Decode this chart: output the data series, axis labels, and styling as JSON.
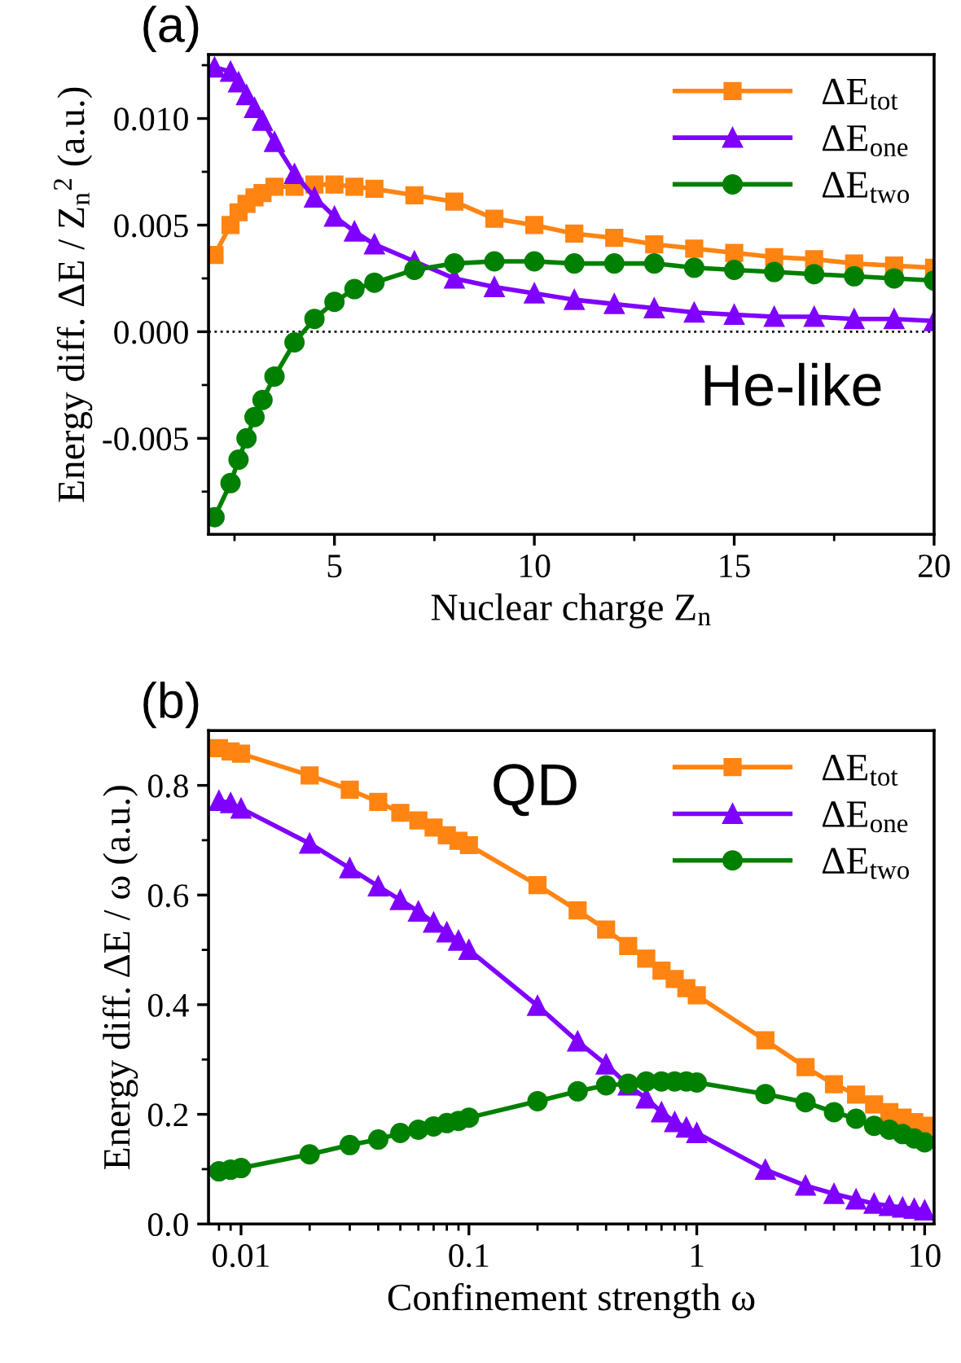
{
  "chart_data": [
    {
      "type": "line",
      "title": "(a)",
      "xlabel": "Nuclear charge Z$_{n}$",
      "ylabel": "Energy diff. ΔE / Z$_{n}$$^{2}$ (a.u.)",
      "x": [
        2,
        2.4,
        2.6,
        2.8,
        3,
        3.2,
        3.5,
        4,
        4.5,
        5,
        5.5,
        6,
        7,
        8,
        9,
        10,
        11,
        12,
        13,
        14,
        15,
        16,
        17,
        18,
        19,
        20
      ],
      "series": [
        {
          "name": "ΔE$_{tot}$",
          "color": "#ff8412",
          "marker": "square",
          "values": [
            0.0036,
            0.005,
            0.0056,
            0.006,
            0.0063,
            0.0065,
            0.0068,
            0.0068,
            0.0069,
            0.0069,
            0.0068,
            0.0067,
            0.0064,
            0.0061,
            0.0053,
            0.005,
            0.0046,
            0.0044,
            0.0041,
            0.0039,
            0.0037,
            0.0035,
            0.0034,
            0.0032,
            0.0031,
            0.003
          ]
        },
        {
          "name": "ΔE$_{one}$",
          "color": "#8000ff",
          "marker": "triangle",
          "values": [
            0.0124,
            0.0122,
            0.0117,
            0.0111,
            0.0105,
            0.0099,
            0.0089,
            0.0074,
            0.0063,
            0.0054,
            0.0047,
            0.0041,
            0.0033,
            0.0025,
            0.0021,
            0.0018,
            0.0015,
            0.0013,
            0.0011,
            0.0009,
            0.0008,
            0.0007,
            0.0007,
            0.0006,
            0.0006,
            0.0005
          ]
        },
        {
          "name": "ΔE$_{two}$",
          "color": "#008000",
          "marker": "circle",
          "values": [
            -0.0087,
            -0.0071,
            -0.006,
            -0.005,
            -0.004,
            -0.0032,
            -0.0021,
            -0.0005,
            0.0006,
            0.0014,
            0.002,
            0.0023,
            0.0029,
            0.0032,
            0.0033,
            0.0033,
            0.0032,
            0.0032,
            0.0032,
            0.003,
            0.0029,
            0.0028,
            0.0027,
            0.0026,
            0.0025,
            0.0024
          ]
        }
      ],
      "xlim": [
        1.85,
        20
      ],
      "ylim": [
        -0.0095,
        0.013
      ],
      "xticks": [
        {
          "value": 2.5,
          "label": null
        },
        5,
        {
          "value": 7.5,
          "label": null
        },
        10,
        {
          "value": 12.5,
          "label": null
        },
        15,
        {
          "value": 17.5,
          "label": null
        },
        20
      ],
      "yticks": [
        {
          "value": -0.0075,
          "label": null
        },
        {
          "value": -0.005,
          "label": "-0.005"
        },
        {
          "value": -0.0025,
          "label": null
        },
        {
          "value": 0,
          "label": "0.000"
        },
        {
          "value": 0.0025,
          "label": null
        },
        {
          "value": 0.005,
          "label": "0.005"
        },
        {
          "value": 0.0075,
          "label": null
        },
        {
          "value": 0.01,
          "label": "0.010"
        },
        {
          "value": 0.0125,
          "label": null
        }
      ],
      "ref_lines": [
        {
          "axis": "y",
          "value": 0,
          "color": "#000000",
          "line_style": "dotted"
        }
      ],
      "annotations": [
        "He-like"
      ],
      "legend": "top right",
      "line_style": "solid"
    },
    {
      "type": "line",
      "title": "(b)",
      "xlabel": "Confinement strength ω",
      "ylabel": "Energy diff. ΔE / ω (a.u.)",
      "log": "x",
      "x": [
        0.008,
        0.009,
        0.01,
        0.02,
        0.03,
        0.04,
        0.05,
        0.06,
        0.07,
        0.08,
        0.09,
        0.1,
        0.2,
        0.3,
        0.4,
        0.5,
        0.6,
        0.7,
        0.8,
        0.9,
        1,
        2,
        3,
        4,
        5,
        6,
        7,
        8,
        9,
        10
      ],
      "series": [
        {
          "name": "ΔE$_{tot}$",
          "color": "#ff8412",
          "marker": "square",
          "values": [
            0.868,
            0.862,
            0.858,
            0.818,
            0.792,
            0.77,
            0.75,
            0.736,
            0.723,
            0.709,
            0.699,
            0.691,
            0.618,
            0.572,
            0.537,
            0.507,
            0.484,
            0.462,
            0.447,
            0.43,
            0.417,
            0.335,
            0.286,
            0.255,
            0.236,
            0.218,
            0.204,
            0.194,
            0.186,
            0.179
          ]
        },
        {
          "name": "ΔE$_{one}$",
          "color": "#8000ff",
          "marker": "triangle",
          "values": [
            0.772,
            0.768,
            0.758,
            0.694,
            0.649,
            0.616,
            0.591,
            0.57,
            0.55,
            0.532,
            0.517,
            0.5,
            0.398,
            0.333,
            0.291,
            0.253,
            0.229,
            0.204,
            0.186,
            0.176,
            0.166,
            0.099,
            0.07,
            0.055,
            0.045,
            0.037,
            0.033,
            0.03,
            0.028,
            0.025
          ]
        },
        {
          "name": "ΔE$_{two}$",
          "color": "#008000",
          "marker": "circle",
          "values": [
            0.096,
            0.099,
            0.102,
            0.127,
            0.144,
            0.154,
            0.166,
            0.172,
            0.178,
            0.184,
            0.188,
            0.194,
            0.224,
            0.242,
            0.253,
            0.256,
            0.26,
            0.26,
            0.26,
            0.26,
            0.258,
            0.237,
            0.222,
            0.204,
            0.192,
            0.179,
            0.172,
            0.164,
            0.156,
            0.149
          ]
        }
      ],
      "xlim": [
        0.0072,
        11
      ],
      "ylim": [
        0,
        0.9
      ],
      "xticks": [
        {
          "value": 0.008,
          "label": null
        },
        {
          "value": 0.009,
          "label": null
        },
        0.01,
        {
          "value": 0.02,
          "label": null
        },
        {
          "value": 0.03,
          "label": null
        },
        {
          "value": 0.04,
          "label": null
        },
        {
          "value": 0.05,
          "label": null
        },
        {
          "value": 0.06,
          "label": null
        },
        {
          "value": 0.07,
          "label": null
        },
        {
          "value": 0.08,
          "label": null
        },
        {
          "value": 0.09,
          "label": null
        },
        0.1,
        {
          "value": 0.2,
          "label": null
        },
        {
          "value": 0.3,
          "label": null
        },
        {
          "value": 0.4,
          "label": null
        },
        {
          "value": 0.5,
          "label": null
        },
        {
          "value": 0.6,
          "label": null
        },
        {
          "value": 0.7,
          "label": null
        },
        {
          "value": 0.8,
          "label": null
        },
        {
          "value": 0.9,
          "label": null
        },
        1,
        {
          "value": 2,
          "label": null
        },
        {
          "value": 3,
          "label": null
        },
        {
          "value": 4,
          "label": null
        },
        {
          "value": 5,
          "label": null
        },
        {
          "value": 6,
          "label": null
        },
        {
          "value": 7,
          "label": null
        },
        {
          "value": 8,
          "label": null
        },
        {
          "value": 9,
          "label": null
        },
        10
      ],
      "yticks": [
        {
          "value": 0,
          "label": "0.0"
        },
        {
          "value": 0.1,
          "label": null
        },
        {
          "value": 0.2,
          "label": "0.2"
        },
        {
          "value": 0.3,
          "label": null
        },
        {
          "value": 0.4,
          "label": "0.4"
        },
        {
          "value": 0.5,
          "label": null
        },
        {
          "value": 0.6,
          "label": "0.6"
        },
        {
          "value": 0.7,
          "label": null
        },
        {
          "value": 0.8,
          "label": "0.8"
        }
      ],
      "annotations": [
        "QD"
      ],
      "legend": "top right",
      "line_style": "solid"
    }
  ]
}
